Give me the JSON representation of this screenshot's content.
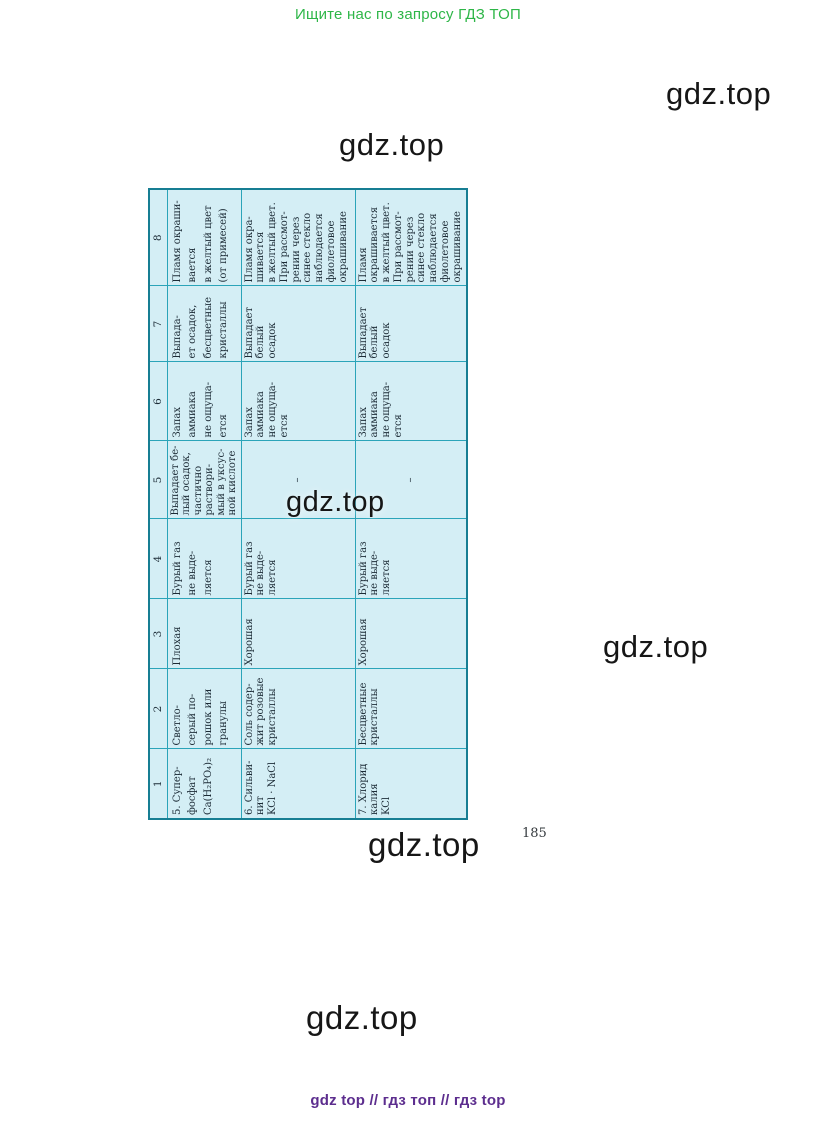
{
  "page": {
    "promo_header": "Ищите нас по запросу ГДЗ ТОП",
    "watermark_text": "gdz.top",
    "page_number": "185",
    "footer": "gdz top  //  гдз топ  //  гдз top"
  },
  "colors": {
    "promo_green": "#2eb648",
    "footer_purple": "#5c2d8e",
    "table_background": "#d4eef5",
    "table_border": "#2ba4b9",
    "table_outer_border": "#177e93",
    "table_text": "#1c2b36",
    "watermark_black": "#161616"
  },
  "table": {
    "headers": [
      "1",
      "2",
      "3",
      "4",
      "5",
      "6",
      "7",
      "8"
    ],
    "rows": [
      {
        "cells": [
          "5. Супер-\nфосфат\nCa(H₂PO₄)₂",
          "Светло-\nсерый по-\nрошок или\nгранулы",
          "Плохая",
          "Бурый газ\nне выде-\nляется",
          "Выпадает бе-\nлый осадок,\nчастично\nраствори-\nмый в уксус-\nной кислоте",
          "Запах\nаммиака\nне ощуща-\nется",
          "Выпада-\nет осадок,\nбесцветные\nкристаллы",
          "Пламя окраши-\nвается\nв желтый цвет\n(от примесей)"
        ]
      },
      {
        "cells": [
          "6. Сильви-\nнит\nKCl · NaCl",
          "Соль содер-\nжит розовые\nкристаллы",
          "Хорошая",
          "Бурый газ\nне выде-\nляется",
          "–",
          "Запах\nаммиака\nне ощуща-\nется",
          "Выпадает\nбелый\nосадок",
          "Пламя окра-\nшивается\nв желтый цвет.\nПри рассмот-\nрении через\nсинее стекло\nнаблюдается\nфиолетовое\nокрашивание"
        ]
      },
      {
        "cells": [
          "7. Хлорид\nкалия\nKCl",
          "Бесцветные\nкристаллы",
          "Хорошая",
          "Бурый газ\nне выде-\nляется",
          "–",
          "Запах\nаммиака\nне ощуща-\nется",
          "Выпадает\nбелый\nосадок",
          "Пламя\nокрашивается\nв желтый цвет.\nПри рассмот-\nрении через\nсинее стекло\nнаблюдается\nфиолетовое\nокрашивание"
        ]
      }
    ]
  }
}
